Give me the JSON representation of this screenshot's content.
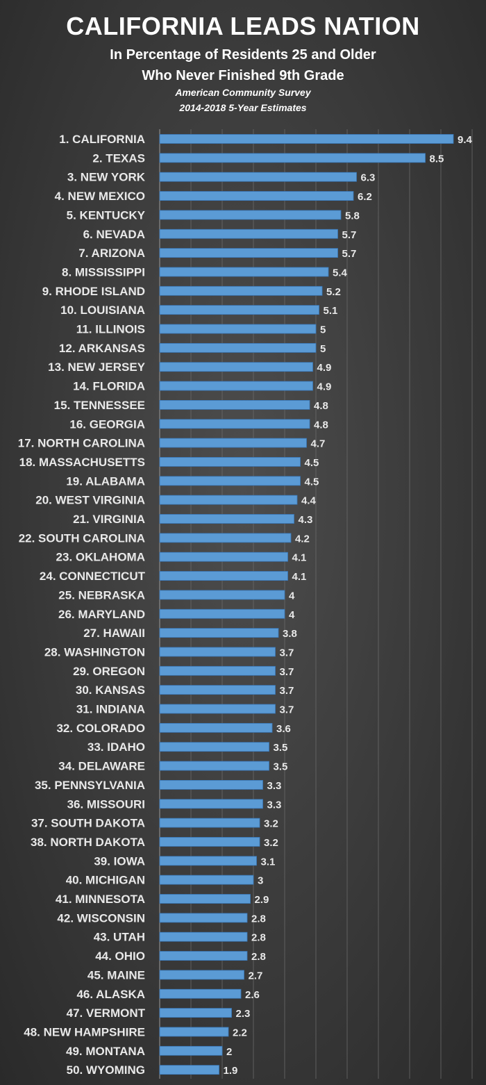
{
  "header": {
    "title": "CALIFORNIA LEADS NATION",
    "subtitle_line1": "In Percentage of Residents 25 and Older",
    "subtitle_line2": "Who Never Finished 9th Grade",
    "source_line1": "American Community Survey",
    "source_line2": "2014-2018 5-Year Estimates"
  },
  "colors": {
    "bar": "#5b9bd5",
    "bar_edge": "#3a78b8",
    "gridline": "#6a6a6a",
    "text": "#ffffff"
  },
  "chart_data": {
    "type": "bar",
    "orientation": "horizontal",
    "title": "CALIFORNIA LEADS NATION",
    "categories": [
      "1. CALIFORNIA",
      "2. TEXAS",
      "3. NEW YORK",
      "4. NEW MEXICO",
      "5. KENTUCKY",
      "6. NEVADA",
      "7. ARIZONA",
      "8. MISSISSIPPI",
      "9. RHODE ISLAND",
      "10. LOUISIANA",
      "11. ILLINOIS",
      "12. ARKANSAS",
      "13. NEW JERSEY",
      "14. FLORIDA",
      "15. TENNESSEE",
      "16. GEORGIA",
      "17. NORTH CAROLINA",
      "18. MASSACHUSETTS",
      "19. ALABAMA",
      "20. WEST VIRGINIA",
      "21. VIRGINIA",
      "22. SOUTH CAROLINA",
      "23. OKLAHOMA",
      "24. CONNECTICUT",
      "25. NEBRASKA",
      "26. MARYLAND",
      "27. HAWAII",
      "28. WASHINGTON",
      "29. OREGON",
      "30. KANSAS",
      "31. INDIANA",
      "32. COLORADO",
      "33. IDAHO",
      "34. DELAWARE",
      "35. PENNSYLVANIA",
      "36. MISSOURI",
      "37. SOUTH DAKOTA",
      "38. NORTH DAKOTA",
      "39. IOWA",
      "40. MICHIGAN",
      "41. MINNESOTA",
      "42. WISCONSIN",
      "43. UTAH",
      "44. OHIO",
      "45. MAINE",
      "46. ALASKA",
      "47. VERMONT",
      "48. NEW HAMPSHIRE",
      "49. MONTANA",
      "50. WYOMING"
    ],
    "values": [
      9.4,
      8.5,
      6.3,
      6.2,
      5.8,
      5.7,
      5.7,
      5.4,
      5.2,
      5.1,
      5,
      5,
      4.9,
      4.9,
      4.8,
      4.8,
      4.7,
      4.5,
      4.5,
      4.4,
      4.3,
      4.2,
      4.1,
      4.1,
      4,
      4,
      3.8,
      3.7,
      3.7,
      3.7,
      3.7,
      3.6,
      3.5,
      3.5,
      3.3,
      3.3,
      3.2,
      3.2,
      3.1,
      3,
      2.9,
      2.8,
      2.8,
      2.8,
      2.7,
      2.6,
      2.3,
      2.2,
      2,
      1.9
    ],
    "xlim": [
      0,
      10
    ],
    "grid": true,
    "data_labels": true,
    "xlabel": "",
    "ylabel": ""
  }
}
